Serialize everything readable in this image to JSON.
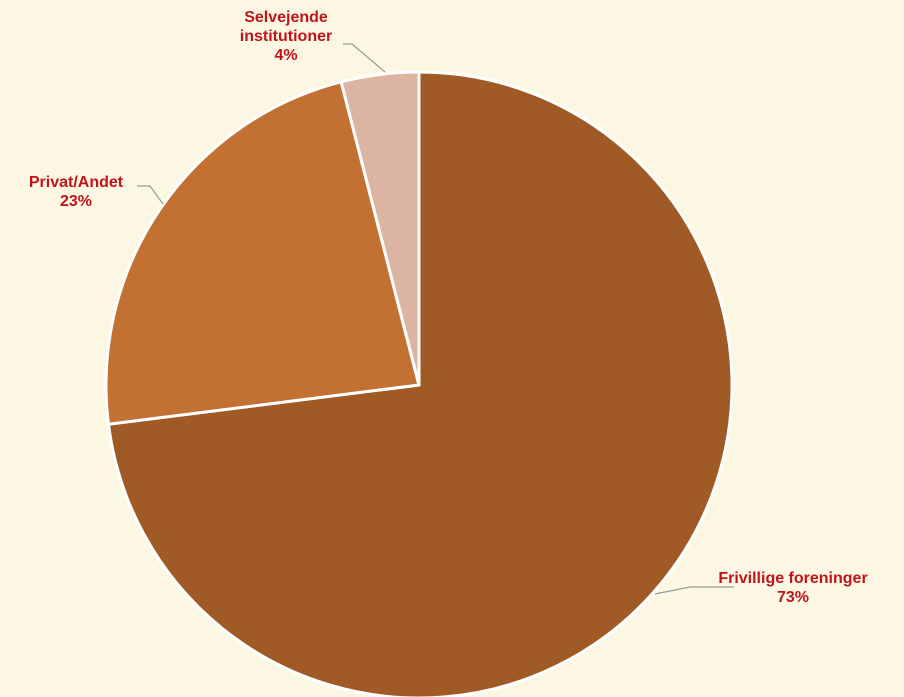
{
  "chart_data": {
    "type": "pie",
    "title": "",
    "slices": [
      {
        "label_lines": [
          "Frivillige foreninger"
        ],
        "percent_label": "73%",
        "value": 73,
        "color": "#a05a26"
      },
      {
        "label_lines": [
          "Privat/Andet"
        ],
        "percent_label": "23%",
        "value": 23,
        "color": "#c27133"
      },
      {
        "label_lines": [
          "Selvejende",
          "institutioner"
        ],
        "percent_label": "4%",
        "value": 4,
        "color": "#dcb4a2"
      }
    ],
    "background_color": "#fbf7e3",
    "label_color": "#c0141c",
    "slice_border_color": "#ffffff"
  }
}
